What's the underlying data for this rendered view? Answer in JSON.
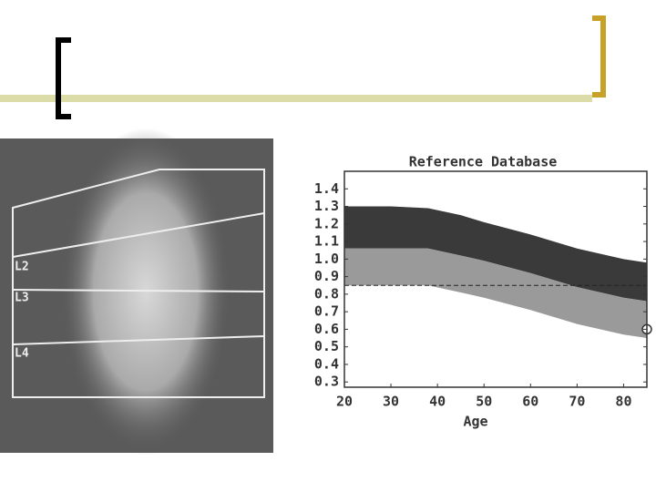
{
  "scan_labels": [
    "L2",
    "L3",
    "L4"
  ],
  "chart_data": {
    "type": "band",
    "title": "Reference Database",
    "x_label": "Age",
    "x": [
      20,
      30,
      38,
      45,
      50,
      60,
      70,
      80,
      85
    ],
    "series": [
      {
        "color": "#3a3a3a",
        "values": [
          1.3,
          1.3,
          1.29,
          1.25,
          1.21,
          1.14,
          1.06,
          1.0,
          0.98
        ]
      },
      {
        "color": "#9a9a9a",
        "values": [
          1.06,
          1.06,
          1.06,
          1.02,
          0.99,
          0.92,
          0.84,
          0.78,
          0.76
        ]
      },
      {
        "values": [
          0.85,
          0.85,
          0.85,
          0.81,
          0.78,
          0.71,
          0.63,
          0.57,
          0.55
        ]
      }
    ],
    "reference_line": 0.85,
    "patient_point": {
      "x": 85,
      "y": 0.6
    },
    "xlim": [
      20,
      85
    ],
    "ylim": [
      0.27,
      1.5
    ],
    "xticks": [
      20,
      30,
      40,
      50,
      60,
      70,
      80
    ],
    "yticks": [
      1.4,
      1.3,
      1.2,
      1.1,
      {
        "value": 1,
        "label": "1.0"
      },
      0.9,
      0.8,
      0.7,
      0.6,
      0.5,
      0.4,
      0.3
    ]
  }
}
